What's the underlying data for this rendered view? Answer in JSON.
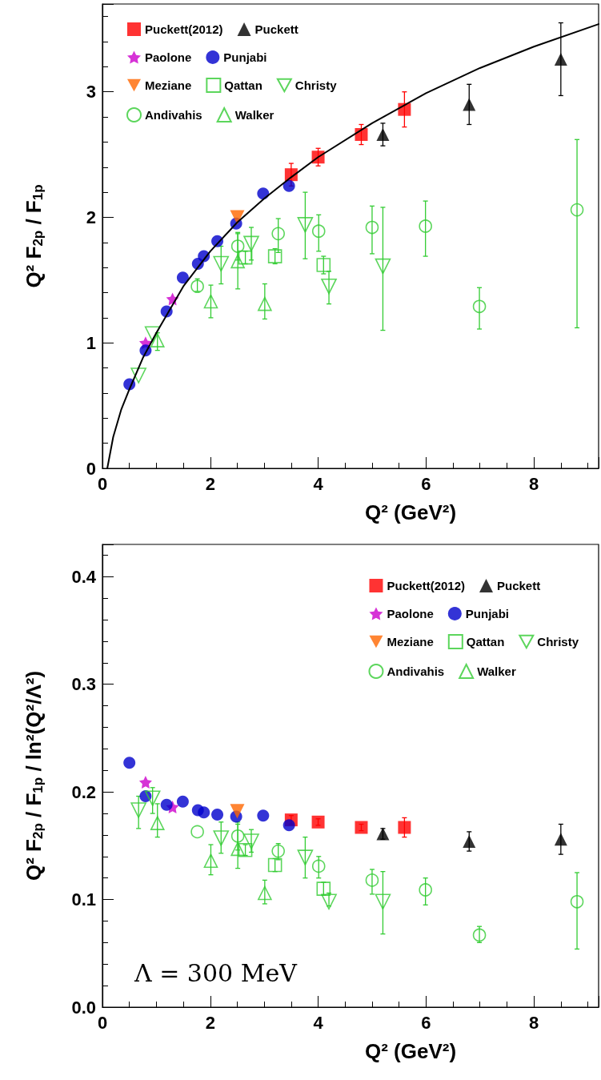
{
  "chart_data": [
    {
      "type": "scatter",
      "xlabel": "Q² (GeV²)",
      "ylabel": "Q² F$_{2p}$ / F$_{1p}$",
      "xlim": [
        0,
        9.2
      ],
      "ylim": [
        0,
        3.7
      ],
      "xticks": [
        0,
        2,
        4,
        6,
        8
      ],
      "yticks": [
        0,
        1,
        2,
        3
      ],
      "legend": "top left",
      "series": [
        {
          "name": "Puckett(2012)",
          "color": "#ff0000",
          "marker": "square",
          "x": [
            3.5,
            4.0,
            4.8,
            5.6
          ],
          "values": [
            2.34,
            2.48,
            2.66,
            2.86
          ],
          "errors": [
            0.09,
            0.07,
            0.08,
            0.14
          ]
        },
        {
          "name": "Puckett",
          "color": "#000000",
          "marker": "triangle",
          "x": [
            5.2,
            6.8,
            8.5
          ],
          "values": [
            2.66,
            2.9,
            3.26
          ],
          "errors": [
            0.09,
            0.16,
            0.29
          ]
        },
        {
          "name": "Paolone",
          "color": "#cc00cc",
          "marker": "star",
          "x": [
            0.8,
            1.3
          ],
          "values": [
            1.0,
            1.35
          ]
        },
        {
          "name": "Punjabi",
          "color": "#0000cc",
          "marker": "circle",
          "x": [
            0.5,
            0.8,
            1.19,
            1.49,
            1.77,
            1.88,
            2.13,
            2.48,
            2.98,
            3.46
          ],
          "values": [
            0.67,
            0.94,
            1.25,
            1.52,
            1.63,
            1.69,
            1.81,
            1.95,
            2.19,
            2.25
          ]
        },
        {
          "name": "Meziane",
          "color": "#ff6600",
          "marker": "triangle-down",
          "x": [
            2.5
          ],
          "values": [
            2.0
          ]
        },
        {
          "name": "Qattan",
          "color": "#33cc33",
          "marker": "square-open",
          "x": [
            2.65,
            3.2,
            4.1
          ],
          "values": [
            1.68,
            1.69,
            1.62
          ],
          "errors": [
            0.05,
            0.06,
            0.07
          ]
        },
        {
          "name": "Christy",
          "color": "#33cc33",
          "marker": "triangle-down-open",
          "x": [
            0.67,
            0.93,
            2.2,
            2.76,
            3.76,
            4.2,
            5.2
          ],
          "values": [
            0.74,
            1.07,
            1.63,
            1.79,
            1.94,
            1.45,
            1.61
          ],
          "errors": [
            null,
            null,
            [
              1.47,
              1.77
            ],
            [
              1.66,
              1.92
            ],
            [
              1.67,
              2.2
            ],
            [
              1.31,
              1.57
            ],
            [
              1.1,
              2.08
            ]
          ]
        },
        {
          "name": "Andivahis",
          "color": "#33cc33",
          "marker": "circle-open",
          "x": [
            1.76,
            2.51,
            3.26,
            4.01,
            5.0,
            5.99,
            6.99,
            8.8
          ],
          "values": [
            1.45,
            1.77,
            1.87,
            1.89,
            1.92,
            1.93,
            1.29,
            2.06
          ],
          "errors": [
            [
              1.41,
              1.51
            ],
            [
              1.66,
              1.88
            ],
            [
              1.72,
              1.99
            ],
            [
              1.73,
              2.02
            ],
            [
              1.71,
              2.09
            ],
            [
              1.69,
              2.13
            ],
            [
              1.11,
              1.44
            ],
            [
              1.12,
              2.62
            ]
          ]
        },
        {
          "name": "Walker",
          "color": "#33cc33",
          "marker": "triangle-open",
          "x": [
            1.02,
            2.01,
            2.51,
            3.01
          ],
          "values": [
            1.02,
            1.33,
            1.65,
            1.31
          ],
          "errors": [
            [
              0.94,
              1.08
            ],
            [
              1.2,
              1.46
            ],
            [
              1.43,
              1.87
            ],
            [
              1.19,
              1.47
            ]
          ]
        },
        {
          "type": "line",
          "color": "#000000",
          "marker": "none",
          "line_style": "solid",
          "x": [
            0.09,
            0.2,
            0.35,
            0.5,
            0.75,
            1,
            1.5,
            2,
            2.5,
            3,
            3.5,
            4,
            5,
            6,
            7,
            8,
            9.2
          ],
          "values": [
            0,
            0.25,
            0.47,
            0.63,
            0.88,
            1.08,
            1.45,
            1.73,
            1.96,
            2.15,
            2.32,
            2.48,
            2.75,
            2.99,
            3.19,
            3.36,
            3.54
          ]
        }
      ]
    },
    {
      "type": "scatter",
      "xlabel": "Q² (GeV²)",
      "ylabel": "Q² F$_{2p}$ / F$_{1p}$ / ln²(Q²/Λ²)",
      "xlim": [
        0,
        9.2
      ],
      "ylim": [
        0,
        0.43
      ],
      "xticks": [
        0,
        2,
        4,
        6,
        8
      ],
      "yticks": [
        {
          "value": 0,
          "label": "0.0"
        },
        0.1,
        0.2,
        0.3,
        0.4
      ],
      "legend": "top right",
      "annotations": [
        "Λ = 300 MeV"
      ],
      "series": [
        {
          "name": "Puckett(2012)",
          "color": "#ff0000",
          "marker": "square",
          "x": [
            3.5,
            4.0,
            4.8,
            5.6
          ],
          "values": [
            0.174,
            0.172,
            0.167,
            0.167
          ],
          "errors": [
            0.004,
            0.003,
            0.003,
            0.009
          ]
        },
        {
          "name": "Puckett",
          "color": "#000000",
          "marker": "triangle",
          "x": [
            5.2,
            6.8,
            8.5
          ],
          "values": [
            0.161,
            0.154,
            0.156
          ],
          "errors": [
            0.005,
            0.009,
            0.014
          ]
        },
        {
          "name": "Paolone",
          "color": "#cc00cc",
          "marker": "star",
          "x": [
            0.8,
            1.3
          ],
          "values": [
            0.209,
            0.186
          ]
        },
        {
          "name": "Punjabi",
          "color": "#0000cc",
          "marker": "circle",
          "x": [
            0.5,
            0.8,
            1.19,
            1.49,
            1.77,
            1.88,
            2.13,
            2.48,
            2.98,
            3.46
          ],
          "values": [
            0.227,
            0.196,
            0.188,
            0.191,
            0.183,
            0.181,
            0.179,
            0.177,
            0.178,
            0.169
          ]
        },
        {
          "name": "Meziane",
          "color": "#ff6600",
          "marker": "triangle-down",
          "x": [
            2.5
          ],
          "values": [
            0.182
          ]
        },
        {
          "name": "Qattan",
          "color": "#33cc33",
          "marker": "square-open",
          "x": [
            2.65,
            3.2,
            4.1
          ],
          "values": [
            0.146,
            0.132,
            0.11
          ],
          "errors": [
            0.005,
            0.006,
            0.006
          ]
        },
        {
          "name": "Christy",
          "color": "#33cc33",
          "marker": "triangle-down-open",
          "x": [
            0.67,
            0.93,
            2.2,
            2.76,
            3.76,
            4.2,
            5.2
          ],
          "values": [
            0.183,
            0.194,
            0.157,
            0.154,
            0.139,
            0.098,
            0.098
          ],
          "errors": [
            [
              0.166,
              0.196
            ],
            [
              0.18,
              0.204
            ],
            [
              0.143,
              0.172
            ],
            [
              0.144,
              0.165
            ],
            [
              0.12,
              0.158
            ],
            [
              0.094,
              0.106
            ],
            [
              0.068,
              0.126
            ]
          ]
        },
        {
          "name": "Andivahis",
          "color": "#33cc33",
          "marker": "circle-open",
          "x": [
            1.76,
            2.51,
            3.26,
            4.01,
            5.0,
            5.99,
            6.99,
            8.8
          ],
          "values": [
            0.163,
            0.159,
            0.145,
            0.131,
            0.118,
            0.109,
            0.067,
            0.098
          ],
          "errors": [
            null,
            [
              0.146,
              0.172
            ],
            [
              0.137,
              0.152
            ],
            [
              0.12,
              0.14
            ],
            [
              0.105,
              0.128
            ],
            [
              0.095,
              0.12
            ],
            [
              0.06,
              0.075
            ],
            [
              0.054,
              0.125
            ]
          ]
        },
        {
          "name": "Walker",
          "color": "#33cc33",
          "marker": "triangle-open",
          "x": [
            1.02,
            2.01,
            2.51,
            3.01
          ],
          "values": [
            0.171,
            0.136,
            0.147,
            0.106
          ],
          "errors": [
            [
              0.158,
              0.189
            ],
            [
              0.123,
              0.151
            ],
            [
              0.129,
              0.17
            ],
            [
              0.096,
              0.118
            ]
          ]
        }
      ]
    }
  ]
}
